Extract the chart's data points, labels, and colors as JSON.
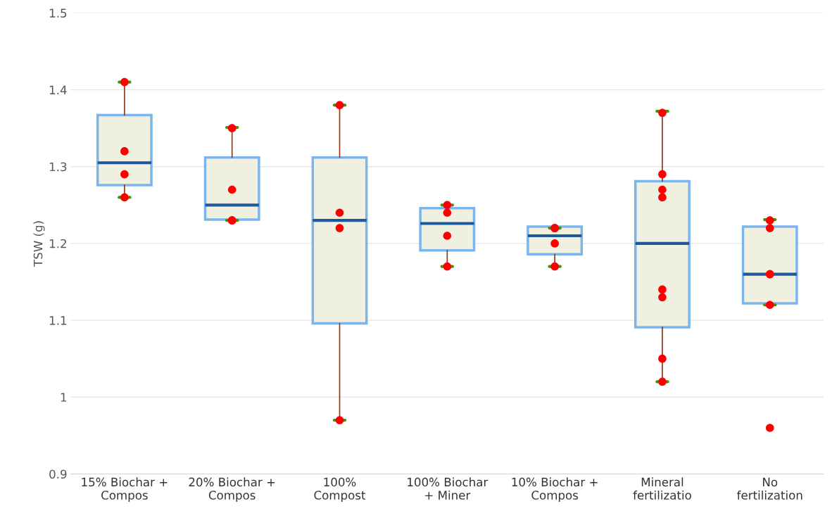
{
  "chart_data": {
    "type": "box",
    "ylabel": "TSW (g)",
    "categories": [
      "15% Biochar +\nCompos",
      "20% Biochar +\nCompos",
      "100%\nCompost",
      "100% Biochar\n+ Miner",
      "10% Biochar +\nCompos",
      "Mineral\nfertilizatio",
      "No\nfertilization"
    ],
    "ylim": [
      0.9,
      1.5
    ],
    "yticks": [
      0.9,
      {
        "value": 1.0,
        "label": "1"
      },
      1.1,
      1.2,
      1.3,
      1.4,
      1.5
    ],
    "grid": "y",
    "series": [
      {
        "color": "#7cb5ec",
        "boxes": [
          {
            "low": 1.26,
            "q1": 1.276,
            "median": 1.305,
            "q3": 1.367,
            "high": 1.41
          },
          {
            "low": 1.23,
            "q1": 1.231,
            "median": 1.25,
            "q3": 1.312,
            "high": 1.351
          },
          {
            "low": 0.97,
            "q1": 1.096,
            "median": 1.23,
            "q3": 1.312,
            "high": 1.38
          },
          {
            "low": 1.17,
            "q1": 1.191,
            "median": 1.226,
            "q3": 1.246,
            "high": 1.25
          },
          {
            "low": 1.17,
            "q1": 1.186,
            "median": 1.21,
            "q3": 1.222,
            "high": 1.22
          },
          {
            "low": 1.02,
            "q1": 1.091,
            "median": 1.2,
            "q3": 1.281,
            "high": 1.372
          },
          {
            "low": 1.12,
            "q1": 1.122,
            "median": 1.16,
            "q3": 1.222,
            "high": 1.231
          }
        ]
      },
      {
        "type": "scatter",
        "color": "#ff0000",
        "x": [
          "15% Biochar +\nCompos",
          "15% Biochar +\nCompos",
          "15% Biochar +\nCompos",
          "15% Biochar +\nCompos",
          "20% Biochar +\nCompos",
          "20% Biochar +\nCompos",
          "20% Biochar +\nCompos",
          "20% Biochar +\nCompos",
          "100%\nCompost",
          "100%\nCompost",
          "100%\nCompost",
          "100%\nCompost",
          "100% Biochar\n+ Miner",
          "100% Biochar\n+ Miner",
          "100% Biochar\n+ Miner",
          "100% Biochar\n+ Miner",
          "10% Biochar +\nCompos",
          "10% Biochar +\nCompos",
          "10% Biochar +\nCompos",
          "10% Biochar +\nCompos",
          "Mineral\nfertilizatio",
          "Mineral\nfertilizatio",
          "Mineral\nfertilizatio",
          "Mineral\nfertilizatio",
          "Mineral\nfertilizatio",
          "Mineral\nfertilizatio",
          "Mineral\nfertilizatio",
          "Mineral\nfertilizatio",
          "No\nfertilization",
          "No\nfertilization",
          "No\nfertilization",
          "No\nfertilization",
          "No\nfertilization",
          "No\nfertilization"
        ],
        "values": [
          1.29,
          1.41,
          1.32,
          1.26,
          1.23,
          1.35,
          1.27,
          1.23,
          1.22,
          1.24,
          1.38,
          0.97,
          1.25,
          1.24,
          1.21,
          1.17,
          1.17,
          1.22,
          1.22,
          1.2,
          1.02,
          1.05,
          1.13,
          1.37,
          1.29,
          1.26,
          1.14,
          1.27,
          1.23,
          1.12,
          1.22,
          1.16,
          1.16,
          0.96
        ]
      }
    ]
  }
}
